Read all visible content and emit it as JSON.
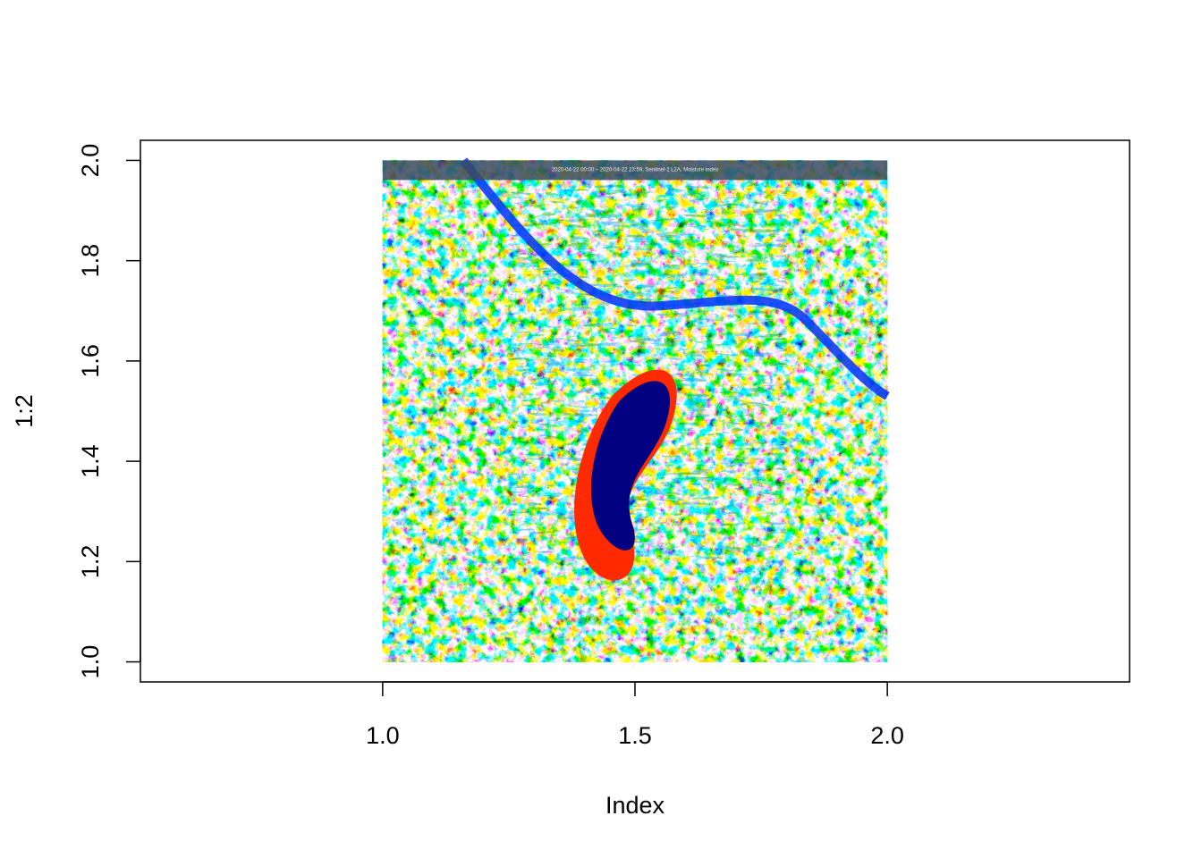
{
  "chart_data": {
    "type": "raster",
    "title": "",
    "xlabel": "Index",
    "ylabel": "1:2",
    "xlim": [
      0.52,
      2.48
    ],
    "ylim": [
      0.96,
      2.04
    ],
    "x_ticks": [
      {
        "value": 1.0,
        "label": "1.0"
      },
      {
        "value": 1.5,
        "label": "1.5"
      },
      {
        "value": 2.0,
        "label": "2.0"
      }
    ],
    "y_ticks": [
      {
        "value": 1.0,
        "label": "1.0"
      },
      {
        "value": 1.2,
        "label": "1.2"
      },
      {
        "value": 1.4,
        "label": "1.4"
      },
      {
        "value": 1.6,
        "label": "1.6"
      },
      {
        "value": 1.8,
        "label": "1.8"
      },
      {
        "value": 2.0,
        "label": "2.0"
      }
    ],
    "image": {
      "x_range": [
        1.0,
        2.0
      ],
      "y_range": [
        1.0,
        2.0
      ],
      "description_banner": "2020-04-22 00:00 – 2020-04-22 23:59, Sentinel-2 L2A, Moisture index",
      "colormap": [
        "#00008b",
        "#0033ff",
        "#00aaff",
        "#40e0ff",
        "#ffff40",
        "#ff8c00",
        "#ff2000",
        "#a00000"
      ],
      "lake_color": "#000080",
      "lake_rim_color": "#ff2a00"
    },
    "grid": false,
    "legend": "none"
  }
}
